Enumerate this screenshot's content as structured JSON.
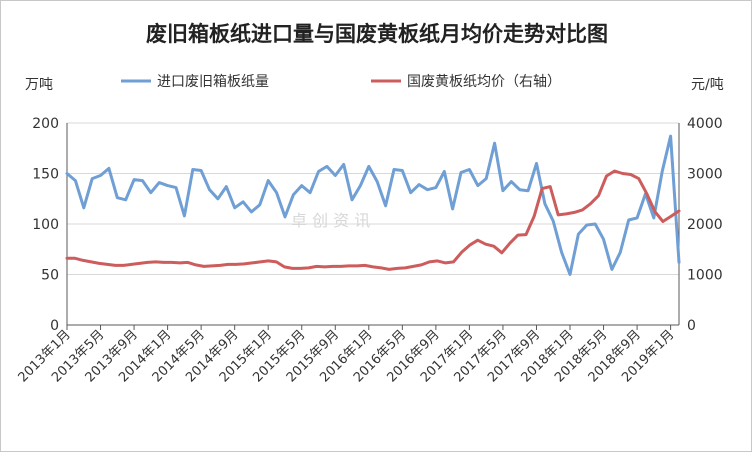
{
  "chart_data": {
    "type": "line",
    "title": "废旧箱板纸进口量与国废黄板纸月均价走势对比图",
    "y_left_unit": "万吨",
    "y_right_unit": "元/吨",
    "ylim_left": [
      0,
      200
    ],
    "ylim_right": [
      0,
      4000
    ],
    "y_left_ticks": [
      "0",
      "50",
      "100",
      "150",
      "200"
    ],
    "y_right_ticks": [
      "0",
      "1000",
      "2000",
      "3000",
      "4000"
    ],
    "x_tick_labels": [
      "2013年1月",
      "2013年5月",
      "2013年9月",
      "2014年1月",
      "2014年5月",
      "2014年9月",
      "2015年1月",
      "2015年5月",
      "2015年9月",
      "2016年1月",
      "2016年5月",
      "2016年9月",
      "2017年1月",
      "2017年5月",
      "2017年9月",
      "2018年1月",
      "2018年5月",
      "2018年9月",
      "2019年1月"
    ],
    "legend_position": "top",
    "grid": "horizontal",
    "series": [
      {
        "name": "进口废旧箱板纸量",
        "axis": "left",
        "color": "#6f9fd4",
        "values": [
          150,
          143,
          116,
          145,
          148,
          155,
          126,
          124,
          144,
          143,
          131,
          141,
          138,
          136,
          108,
          154,
          153,
          134,
          125,
          137,
          116,
          122,
          112,
          119,
          143,
          131,
          107,
          129,
          138,
          131,
          152,
          157,
          148,
          159,
          124,
          138,
          157,
          142,
          118,
          154,
          153,
          131,
          139,
          134,
          136,
          152,
          115,
          151,
          154,
          138,
          145,
          180,
          133,
          142,
          134,
          133,
          160,
          120,
          103,
          72,
          50,
          90,
          99,
          100,
          85,
          55,
          72,
          104,
          106,
          130,
          106,
          152,
          187,
          62
        ]
      },
      {
        "name": "国废黄板纸均价（右轴）",
        "axis": "right",
        "color": "#cd5c5c",
        "values": [
          1320,
          1320,
          1280,
          1250,
          1220,
          1200,
          1180,
          1180,
          1200,
          1220,
          1240,
          1250,
          1240,
          1240,
          1230,
          1240,
          1190,
          1160,
          1170,
          1180,
          1200,
          1200,
          1210,
          1230,
          1250,
          1270,
          1250,
          1150,
          1120,
          1120,
          1130,
          1160,
          1150,
          1160,
          1160,
          1170,
          1170,
          1180,
          1150,
          1130,
          1100,
          1120,
          1130,
          1160,
          1190,
          1250,
          1270,
          1230,
          1250,
          1440,
          1580,
          1680,
          1600,
          1560,
          1430,
          1620,
          1780,
          1790,
          2150,
          2700,
          2740,
          2180,
          2200,
          2230,
          2280,
          2400,
          2560,
          2950,
          3050,
          3000,
          2980,
          2900,
          2600,
          2250,
          2050,
          2150,
          2260
        ]
      }
    ]
  },
  "watermark": "卓 创 资 讯"
}
